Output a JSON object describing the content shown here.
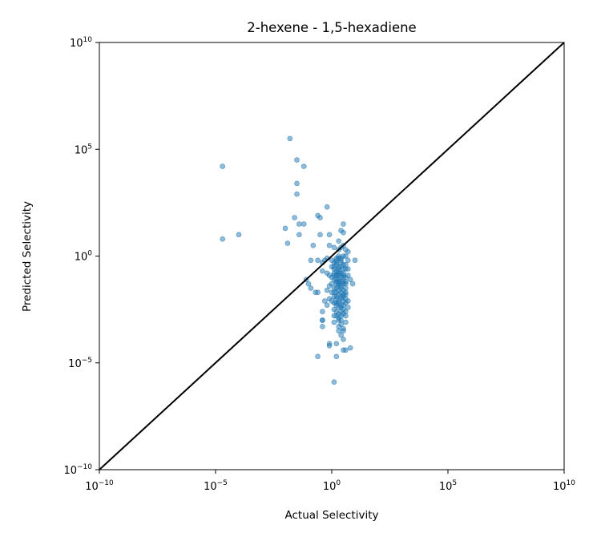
{
  "chart_data": {
    "type": "scatter",
    "title": "2-hexene - 1,5-hexadiene",
    "xlabel": "Actual Selectivity",
    "ylabel": "Predicted Selectivity",
    "xscale": "log",
    "yscale": "log",
    "xlim": [
      1e-10,
      10000000000.0
    ],
    "ylim": [
      1e-10,
      10000000000.0
    ],
    "xticks": [
      {
        "base": "10",
        "exp": "−10",
        "value": -10
      },
      {
        "base": "10",
        "exp": "−5",
        "value": -5
      },
      {
        "base": "10",
        "exp": "0",
        "value": 0
      },
      {
        "base": "10",
        "exp": "5",
        "value": 5
      },
      {
        "base": "10",
        "exp": "10",
        "value": 10
      }
    ],
    "yticks": [
      {
        "base": "10",
        "exp": "−10",
        "value": -10
      },
      {
        "base": "10",
        "exp": "−5",
        "value": -5
      },
      {
        "base": "10",
        "exp": "0",
        "value": 0
      },
      {
        "base": "10",
        "exp": "5",
        "value": 5
      },
      {
        "base": "10",
        "exp": "10",
        "value": 10
      }
    ],
    "grid": false,
    "point_color": "#1f77b4",
    "point_opacity": 0.5,
    "line_color": "#000000",
    "reference_line": {
      "x": [
        1e-10,
        10000000000.0
      ],
      "y": [
        1e-10,
        10000000000.0
      ]
    },
    "log10_points": [
      [
        -4.7,
        4.2
      ],
      [
        -4.7,
        0.8
      ],
      [
        -4.0,
        1.0
      ],
      [
        -1.8,
        5.5
      ],
      [
        -1.5,
        4.5
      ],
      [
        -1.2,
        4.2
      ],
      [
        -1.5,
        3.4
      ],
      [
        -1.5,
        2.9
      ],
      [
        -1.6,
        1.8
      ],
      [
        -1.4,
        1.5
      ],
      [
        -2.0,
        1.3
      ],
      [
        -1.9,
        0.6
      ],
      [
        -1.2,
        1.5
      ],
      [
        -0.6,
        1.9
      ],
      [
        -0.5,
        1.8
      ],
      [
        -0.2,
        2.3
      ],
      [
        -1.4,
        1.0
      ],
      [
        -0.5,
        1.0
      ],
      [
        -0.1,
        1.0
      ],
      [
        0.5,
        1.5
      ],
      [
        0.4,
        1.2
      ],
      [
        0.5,
        1.1
      ],
      [
        0.3,
        0.7
      ],
      [
        0.6,
        0.3
      ],
      [
        0.7,
        0.2
      ],
      [
        -0.8,
        0.5
      ],
      [
        -0.1,
        0.5
      ],
      [
        0.1,
        0.4
      ],
      [
        0.7,
        -0.2
      ],
      [
        -0.9,
        -0.2
      ],
      [
        -0.6,
        -0.2
      ],
      [
        -0.4,
        -0.3
      ],
      [
        -0.3,
        -0.2
      ],
      [
        -0.2,
        -0.1
      ],
      [
        0.0,
        -0.2
      ],
      [
        0.2,
        -0.3
      ],
      [
        0.3,
        -0.1
      ],
      [
        0.4,
        -0.2
      ],
      [
        0.6,
        0.0
      ],
      [
        1.0,
        -0.2
      ],
      [
        0.0,
        -0.5
      ],
      [
        0.1,
        -0.6
      ],
      [
        0.3,
        -0.5
      ],
      [
        0.5,
        -0.6
      ],
      [
        0.6,
        -0.4
      ],
      [
        0.7,
        -0.6
      ],
      [
        -0.4,
        -0.7
      ],
      [
        -0.2,
        -0.8
      ],
      [
        -0.1,
        -0.9
      ],
      [
        0.0,
        -1.0
      ],
      [
        0.1,
        -0.8
      ],
      [
        0.2,
        -0.9
      ],
      [
        0.3,
        -1.1
      ],
      [
        0.5,
        -0.8
      ],
      [
        0.6,
        -1.0
      ],
      [
        0.7,
        -0.9
      ],
      [
        -0.1,
        -1.4
      ],
      [
        0.2,
        -1.3
      ],
      [
        0.3,
        -1.2
      ],
      [
        0.6,
        -1.3
      ],
      [
        0.8,
        -1.1
      ],
      [
        0.9,
        -1.3
      ],
      [
        -1.1,
        -1.1
      ],
      [
        -1.0,
        -1.3
      ],
      [
        -0.9,
        -1.5
      ],
      [
        -0.7,
        -1.7
      ],
      [
        -0.6,
        -1.7
      ],
      [
        -0.2,
        -1.6
      ],
      [
        0.0,
        -1.7
      ],
      [
        0.2,
        -1.9
      ],
      [
        0.3,
        -1.8
      ],
      [
        0.4,
        -1.7
      ],
      [
        0.5,
        -1.9
      ],
      [
        0.6,
        -1.7
      ],
      [
        0.4,
        -1.4
      ],
      [
        0.1,
        -1.5
      ],
      [
        -0.1,
        -2.0
      ],
      [
        0.0,
        -2.1
      ],
      [
        0.2,
        -2.2
      ],
      [
        0.3,
        -2.1
      ],
      [
        0.5,
        -2.1
      ],
      [
        0.6,
        -2.0
      ],
      [
        0.7,
        -2.1
      ],
      [
        -0.3,
        -2.1
      ],
      [
        -0.2,
        -2.3
      ],
      [
        0.1,
        -2.5
      ],
      [
        0.2,
        -2.3
      ],
      [
        0.4,
        -2.4
      ],
      [
        0.5,
        -2.3
      ],
      [
        0.7,
        -2.4
      ],
      [
        0.1,
        -2.8
      ],
      [
        0.3,
        -2.9
      ],
      [
        0.4,
        -2.8
      ],
      [
        0.6,
        -2.8
      ],
      [
        -0.4,
        -2.6
      ],
      [
        -0.4,
        -3.0
      ],
      [
        0.3,
        -3.3
      ],
      [
        0.4,
        -3.2
      ],
      [
        0.3,
        -3.5
      ],
      [
        0.4,
        -3.7
      ],
      [
        0.5,
        -3.9
      ],
      [
        -0.1,
        -4.2
      ],
      [
        -0.1,
        -4.1
      ],
      [
        -0.4,
        -3.3
      ],
      [
        -0.4,
        -3.0
      ],
      [
        0.3,
        -3.0
      ],
      [
        0.5,
        -3.4
      ],
      [
        -0.6,
        -4.7
      ],
      [
        0.2,
        -4.7
      ],
      [
        0.5,
        -4.4
      ],
      [
        0.6,
        -4.4
      ],
      [
        0.1,
        -5.9
      ],
      [
        0.8,
        -4.3
      ],
      [
        0.2,
        -4.1
      ],
      [
        0.5,
        -3.5
      ],
      [
        0.1,
        -3.1
      ],
      [
        0.2,
        -0.4
      ],
      [
        0.3,
        -0.7
      ],
      [
        0.4,
        -1.0
      ],
      [
        0.5,
        -1.2
      ],
      [
        0.1,
        -1.1
      ],
      [
        0.2,
        -1.5
      ],
      [
        0.3,
        -1.6
      ],
      [
        0.4,
        -1.9
      ],
      [
        0.2,
        -1.7
      ],
      [
        0.3,
        -1.4
      ],
      [
        0.1,
        -0.3
      ],
      [
        0.2,
        -0.1
      ],
      [
        0.3,
        0.0
      ],
      [
        0.4,
        -0.1
      ],
      [
        0.5,
        -0.4
      ],
      [
        0.6,
        -0.6
      ],
      [
        0.1,
        -0.9
      ],
      [
        0.2,
        -1.1
      ],
      [
        0.3,
        -1.3
      ],
      [
        0.4,
        -1.5
      ],
      [
        0.5,
        -1.6
      ],
      [
        0.6,
        -1.8
      ],
      [
        0.2,
        -2.0
      ],
      [
        0.3,
        -2.2
      ],
      [
        0.4,
        -2.3
      ],
      [
        0.5,
        -2.5
      ],
      [
        0.6,
        -2.6
      ],
      [
        0.2,
        -2.6
      ],
      [
        0.3,
        -2.4
      ],
      [
        0.4,
        -2.6
      ],
      [
        0.1,
        -2.2
      ],
      [
        0.0,
        -1.3
      ],
      [
        0.1,
        -1.7
      ],
      [
        0.2,
        -0.7
      ],
      [
        0.4,
        0.4
      ],
      [
        0.5,
        0.5
      ],
      [
        0.3,
        0.3
      ],
      [
        0.5,
        0.0
      ],
      [
        0.4,
        -0.5
      ],
      [
        0.3,
        -0.9
      ],
      [
        0.5,
        -1.3
      ],
      [
        0.5,
        -1.0
      ],
      [
        0.4,
        -1.2
      ],
      [
        0.6,
        -1.2
      ],
      [
        0.6,
        -1.5
      ],
      [
        0.6,
        -2.2
      ],
      [
        0.4,
        -2.0
      ],
      [
        0.5,
        -1.8
      ],
      [
        0.1,
        -1.9
      ],
      [
        0.2,
        -2.8
      ],
      [
        0.3,
        -2.7
      ],
      [
        0.5,
        -2.7
      ],
      [
        0.4,
        -3.0
      ],
      [
        0.6,
        -3.1
      ],
      [
        0.2,
        -1.2
      ],
      [
        0.2,
        -0.9
      ],
      [
        0.1,
        -0.5
      ],
      [
        0.4,
        -0.8
      ],
      [
        0.5,
        -0.9
      ],
      [
        0.3,
        -0.6
      ],
      [
        0.4,
        -0.3
      ],
      [
        0.2,
        -0.2
      ],
      [
        0.3,
        -0.8
      ]
    ]
  }
}
